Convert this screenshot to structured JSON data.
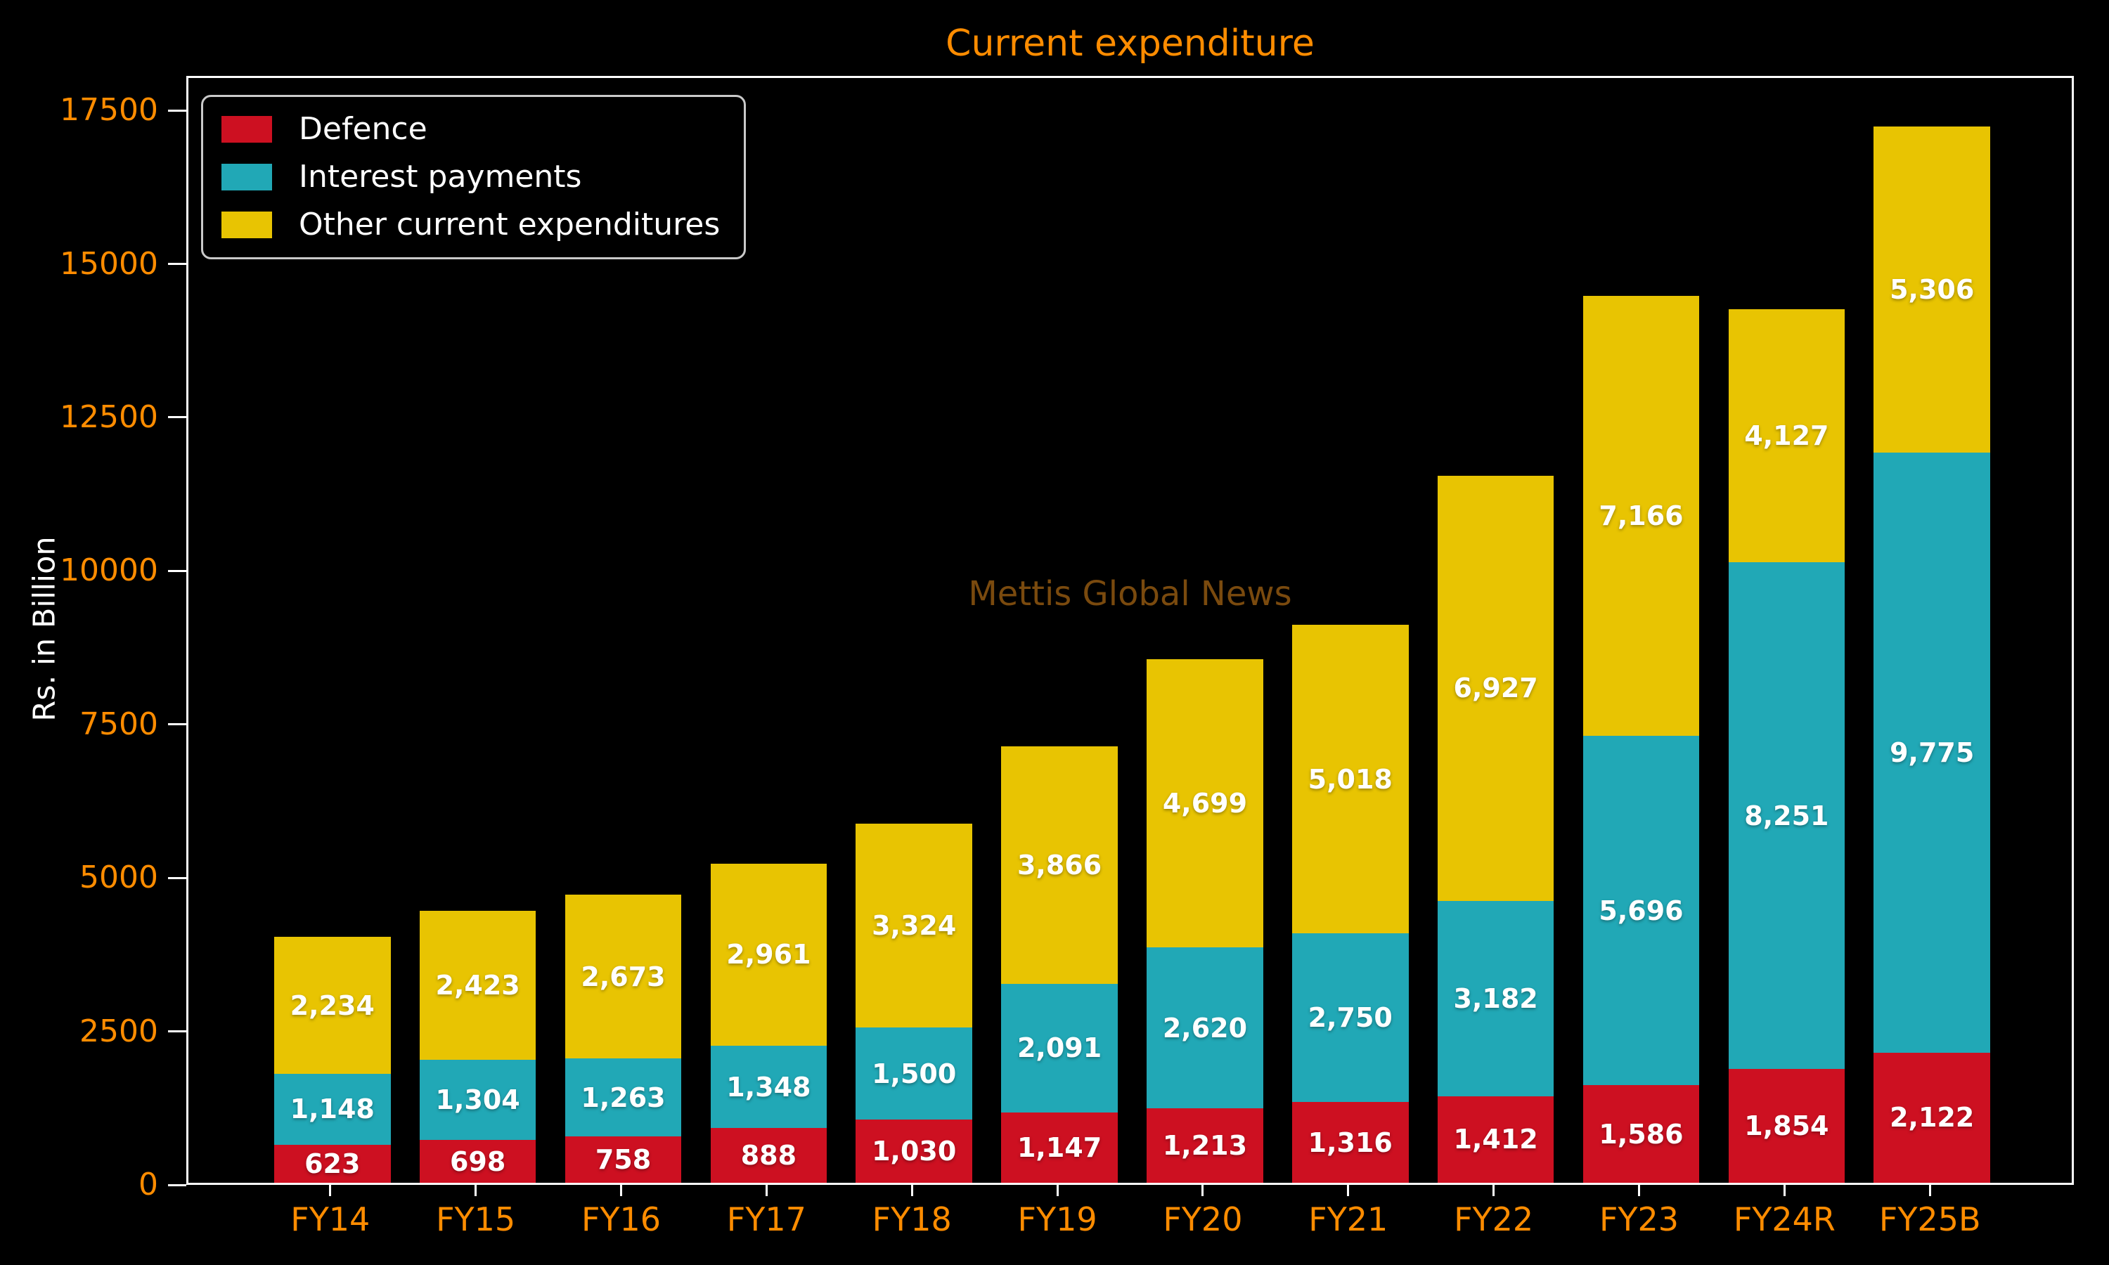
{
  "title": "Current expenditure",
  "watermark": "Mettis Global News",
  "colors": {
    "background": "#000000",
    "axis": "#ffffff",
    "title": "#ff8c00",
    "tick_label": "#ff8c00",
    "bar_label": "#ffffff",
    "watermark": "#7a4a0e",
    "legend_border": "#c9c9c9",
    "defence": "#cd1021",
    "interest_payments": "#21a8b6",
    "other_current_expenditures": "#e8c402"
  },
  "chart_data": {
    "type": "bar",
    "stacked": true,
    "title": "Current expenditure",
    "xlabel": "",
    "ylabel": "Rs. in Billion",
    "categories": [
      "FY14",
      "FY15",
      "FY16",
      "FY17",
      "FY18",
      "FY19",
      "FY20",
      "FY21",
      "FY22",
      "FY23",
      "FY24R",
      "FY25B"
    ],
    "series": [
      {
        "name": "Defence",
        "color": "#cd1021",
        "values": [
          623,
          698,
          758,
          888,
          1030,
          1147,
          1213,
          1316,
          1412,
          1586,
          1854,
          2122
        ]
      },
      {
        "name": "Interest payments",
        "color": "#21a8b6",
        "values": [
          1148,
          1304,
          1263,
          1348,
          1500,
          2091,
          2620,
          2750,
          3182,
          5696,
          8251,
          9775
        ]
      },
      {
        "name": "Other current expenditures",
        "color": "#e8c402",
        "values": [
          2234,
          2423,
          2673,
          2961,
          3324,
          3866,
          4699,
          5018,
          6927,
          7166,
          4127,
          5306
        ]
      }
    ],
    "y_ticks": [
      0,
      2500,
      5000,
      7500,
      10000,
      12500,
      15000,
      17500
    ],
    "ylim": [
      0,
      18063
    ],
    "bar_width_fraction": 0.8,
    "grid": false,
    "legend_position": "upper left"
  }
}
